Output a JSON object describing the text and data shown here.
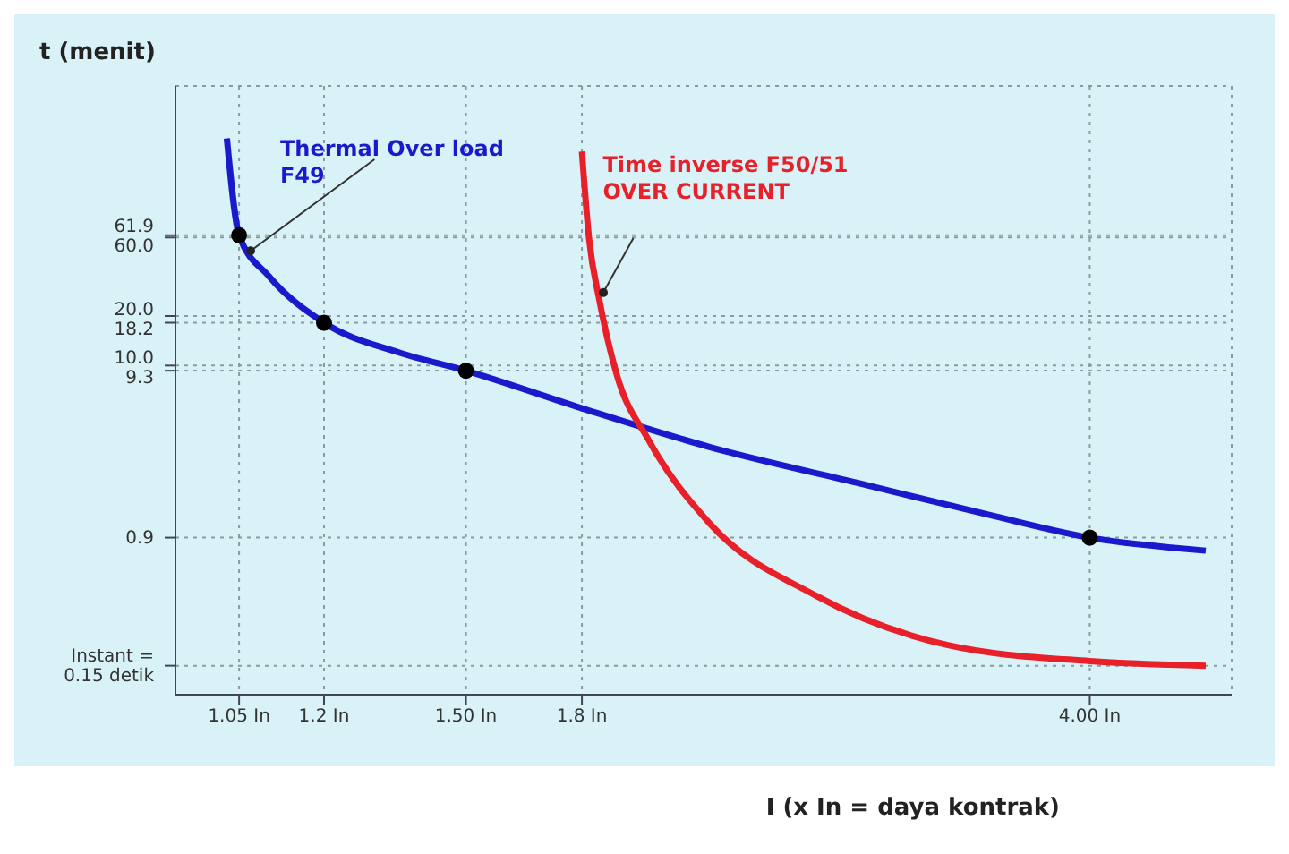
{
  "chart_data": {
    "type": "line",
    "xlabel": "I (x In = daya kontrak)",
    "ylabel": "t (menit)",
    "log": "xy",
    "grid": true,
    "line_style": "solid",
    "xlim": [
      0.95,
      5
    ],
    "ylim": [
      0.1,
      500
    ],
    "xticks": [
      {
        "value": 1.05,
        "label": "1.05 In"
      },
      {
        "value": 1.2,
        "label": "1.2 In"
      },
      {
        "value": 1.5,
        "label": "1.50 In"
      },
      {
        "value": 1.8,
        "label": "1.8 In"
      },
      {
        "value": 4,
        "label": "4.00 In"
      }
    ],
    "yticks": [
      {
        "value": 0.15,
        "label": "Instant = 0.15 detik"
      },
      0.9,
      9.3,
      {
        "value": 10,
        "label": "10.0"
      },
      18.2,
      {
        "value": 20,
        "label": "20.0"
      },
      {
        "value": 60,
        "label": "60.0"
      },
      61.9
    ],
    "series": [
      {
        "name": "Thermal Over load F49",
        "color": "#1a1acc",
        "marker": "none",
        "x": [
          1.03,
          1.05,
          1.1,
          1.2,
          1.35,
          1.5,
          1.8,
          2.2,
          2.8,
          3.4,
          4,
          4.8
        ],
        "values": [
          240,
          61.9,
          35,
          18.2,
          12,
          9.3,
          5.5,
          3.2,
          1.9,
          1.25,
          0.9,
          0.75
        ]
      },
      {
        "name": "Time inverse F50/51 OVER CURRENT",
        "color": "#e8202a",
        "marker": "none",
        "x": [
          1.8,
          1.82,
          1.85,
          1.9,
          2,
          2.2,
          2.6,
          3.2,
          4,
          4.8
        ],
        "values": [
          200,
          60,
          25,
          9,
          3.5,
          1.1,
          0.4,
          0.2,
          0.16,
          0.15
        ]
      },
      {
        "type": "scatter",
        "color": "#000000",
        "marker": "circle",
        "x": [
          1.05,
          1.2,
          1.5,
          4
        ],
        "values": [
          61.9,
          18.2,
          9.3,
          0.9
        ]
      }
    ]
  }
}
